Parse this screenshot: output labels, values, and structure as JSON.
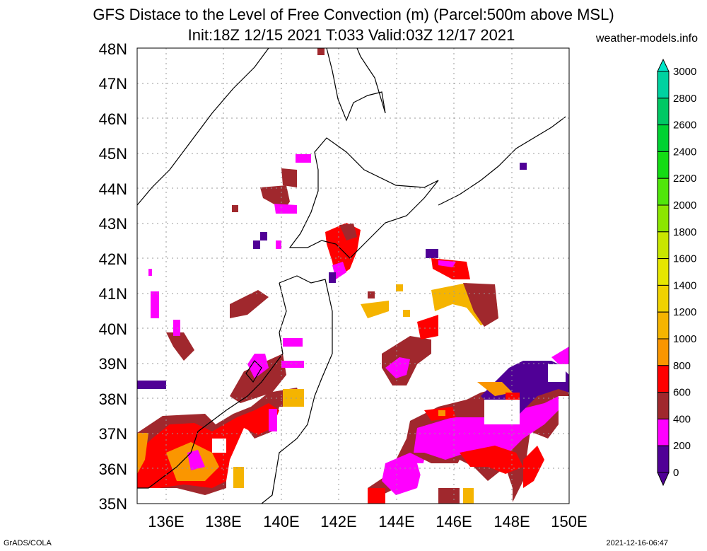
{
  "title_line1": "GFS Distace to the Level of Free Convection (m) (Parcel:500m above MSL)",
  "title_line2": "Init:18Z 12/15 2021 T:033 Valid:03Z 12/17 2021",
  "credit": "weather-models.info",
  "footer_left": "GrADS/COLA",
  "footer_right": "2021-12-16-06:47",
  "map": {
    "lon_range": [
      135,
      150
    ],
    "lat_range": [
      35,
      48
    ],
    "lat_labels": [
      "48N",
      "47N",
      "46N",
      "45N",
      "44N",
      "43N",
      "42N",
      "41N",
      "40N",
      "39N",
      "38N",
      "37N",
      "36N",
      "35N"
    ],
    "lon_labels": [
      "136E",
      "138E",
      "140E",
      "142E",
      "144E",
      "146E",
      "148E",
      "150E"
    ]
  },
  "colorbar": {
    "labels": [
      "3000",
      "2800",
      "2600",
      "2400",
      "2200",
      "2000",
      "1800",
      "1600",
      "1400",
      "1200",
      "1000",
      "800",
      "600",
      "400",
      "200",
      "0"
    ],
    "colors": [
      "#00e6c8",
      "#00d2a0",
      "#00c864",
      "#00d232",
      "#14dc14",
      "#50e60a",
      "#8ce600",
      "#c8e600",
      "#e6e600",
      "#f0d200",
      "#f5b400",
      "#fa9600",
      "#ff0000",
      "#a0282d",
      "#ff00ff",
      "#500096"
    ]
  }
}
